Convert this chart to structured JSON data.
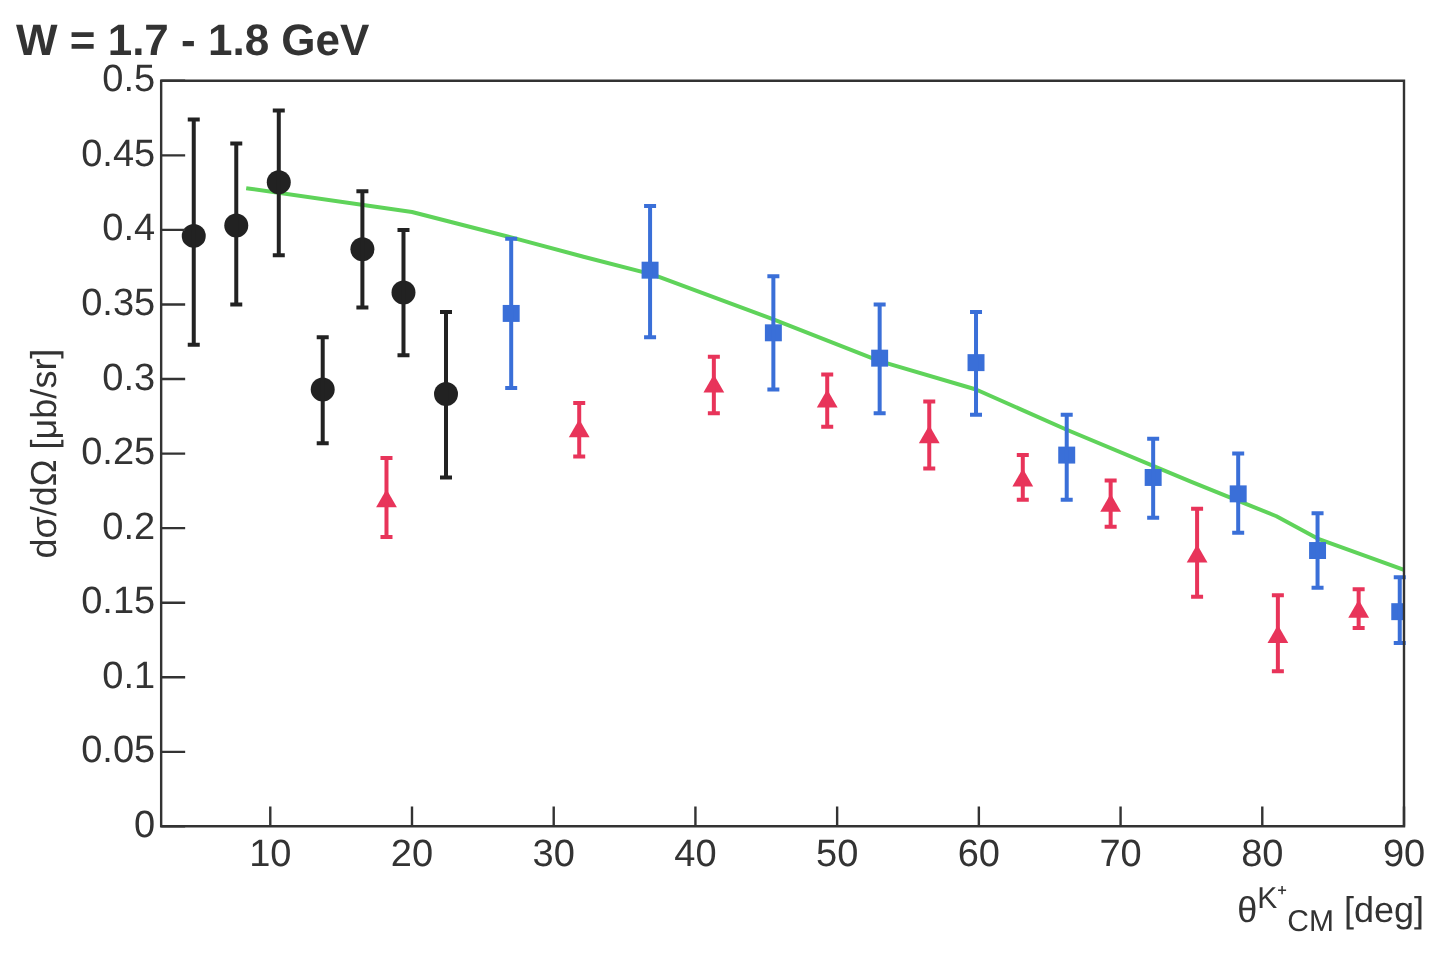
{
  "chart_data": {
    "type": "scatter",
    "title": "W = 1.7 - 1.8 GeV",
    "xlabel": "θ$^{K⁺}$$_{CM}$ [deg]",
    "ylabel": "dσ/dΩ [μb/sr]",
    "xlim": [
      2.3,
      90
    ],
    "xticks": [
      10,
      20,
      30,
      40,
      50,
      60,
      70,
      80,
      90
    ],
    "ylim": [
      0,
      0.5
    ],
    "yticks": [
      0,
      0.05,
      0.1,
      0.15,
      0.2,
      0.25,
      0.3,
      0.35,
      0.4,
      0.45,
      0.5
    ],
    "grid": false,
    "legend": false,
    "series": [
      {
        "type": "scatter",
        "marker": "circle",
        "color": "#222222",
        "x": [
          4.6,
          7.6,
          10.6,
          13.7,
          16.5,
          19.4,
          22.4
        ],
        "values": [
          0.396,
          0.403,
          0.432,
          0.293,
          0.387,
          0.358,
          0.29
        ],
        "errors": [
          [
            0.323,
            0.474
          ],
          [
            0.35,
            0.458
          ],
          [
            0.383,
            0.48
          ],
          [
            0.257,
            0.328
          ],
          [
            0.348,
            0.426
          ],
          [
            0.316,
            0.4
          ],
          [
            0.234,
            0.345
          ]
        ]
      },
      {
        "type": "scatter",
        "marker": "square",
        "color": "#3a6fd8",
        "x": [
          27.0,
          36.8,
          45.5,
          53.0,
          59.8,
          66.2,
          72.3,
          78.3,
          83.9,
          89.7
        ],
        "values": [
          0.344,
          0.373,
          0.331,
          0.314,
          0.311,
          0.249,
          0.234,
          0.223,
          0.185,
          0.144
        ],
        "errors": [
          [
            0.294,
            0.394
          ],
          [
            0.328,
            0.416
          ],
          [
            0.293,
            0.369
          ],
          [
            0.277,
            0.35
          ],
          [
            0.276,
            0.345
          ],
          [
            0.219,
            0.276
          ],
          [
            0.207,
            0.26
          ],
          [
            0.197,
            0.25
          ],
          [
            0.16,
            0.21
          ],
          [
            0.123,
            0.167
          ]
        ]
      },
      {
        "type": "scatter",
        "marker": "triangle",
        "color": "#e8345a",
        "x": [
          18.2,
          31.8,
          41.3,
          49.3,
          56.5,
          63.1,
          69.3,
          75.4,
          81.1,
          86.8
        ],
        "values": [
          0.218,
          0.265,
          0.295,
          0.285,
          0.261,
          0.232,
          0.215,
          0.181,
          0.127,
          0.144
        ],
        "errors": [
          [
            0.194,
            0.247
          ],
          [
            0.248,
            0.284
          ],
          [
            0.277,
            0.315
          ],
          [
            0.268,
            0.303
          ],
          [
            0.24,
            0.285
          ],
          [
            0.219,
            0.249
          ],
          [
            0.201,
            0.232
          ],
          [
            0.154,
            0.213
          ],
          [
            0.104,
            0.155
          ],
          [
            0.133,
            0.159
          ]
        ]
      },
      {
        "type": "line",
        "marker": "none",
        "color": "#5fd35a",
        "x": [
          8.3,
          20,
          27,
          32.1,
          37,
          45.5,
          53,
          59.8,
          66.2,
          75,
          81,
          83.9,
          90
        ],
        "values": [
          0.428,
          0.412,
          0.395,
          0.382,
          0.37,
          0.34,
          0.312,
          0.293,
          0.266,
          0.231,
          0.208,
          0.193,
          0.172
        ]
      }
    ]
  }
}
